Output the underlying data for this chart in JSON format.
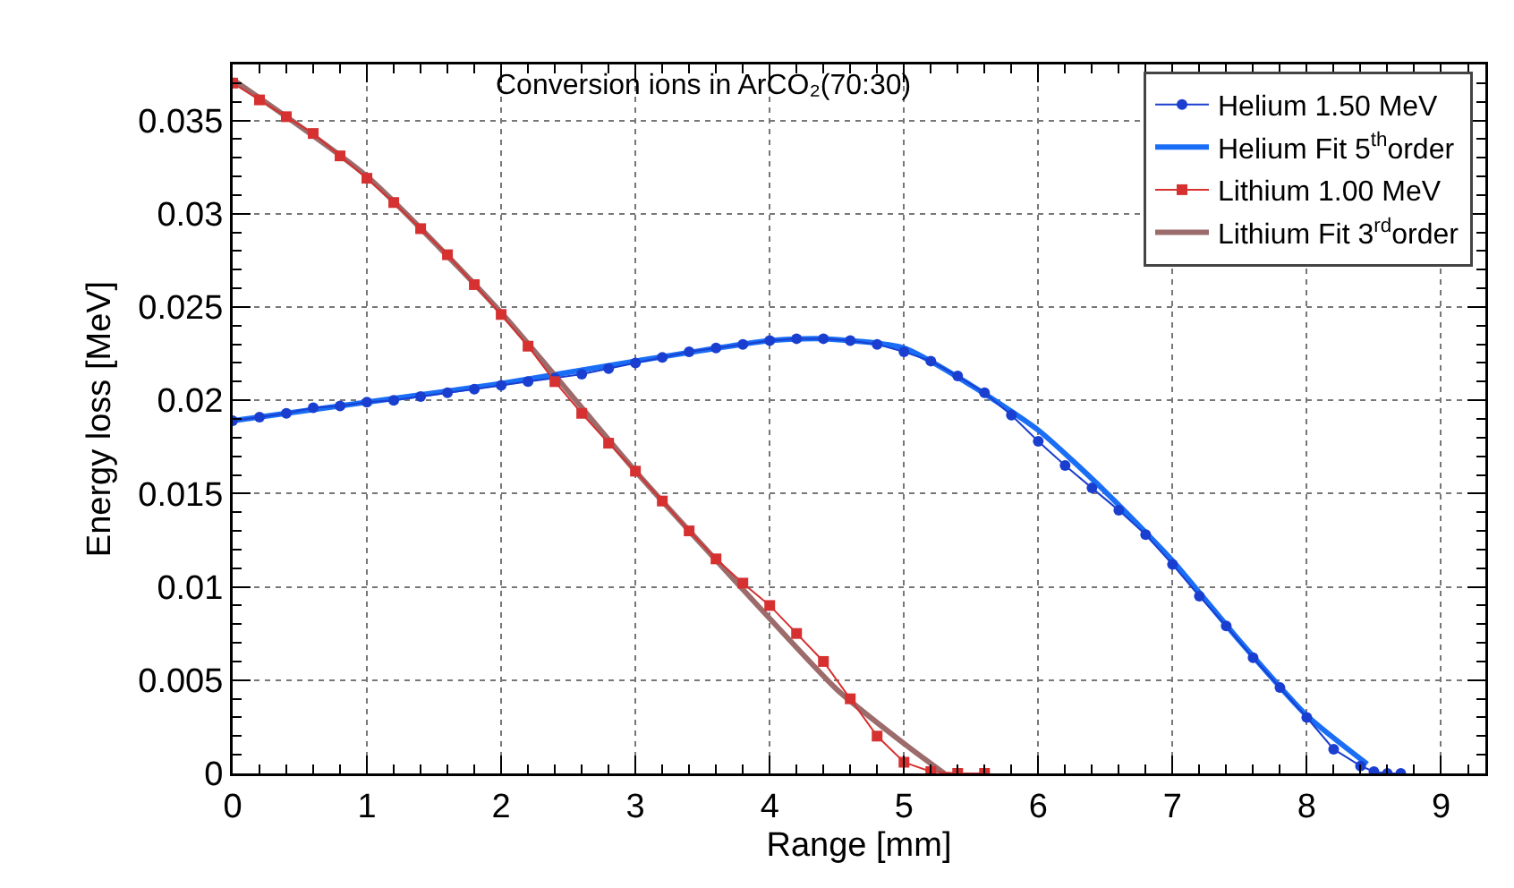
{
  "chart_data": {
    "type": "line",
    "title": "Conversion ions in ArCO₂(70:30)",
    "xlabel": "Range [mm]",
    "ylabel": "Energy loss [MeV]",
    "xlim": [
      0,
      9.33
    ],
    "ylim": [
      0,
      0.038
    ],
    "xticks": [
      0,
      1,
      2,
      3,
      4,
      5,
      6,
      7,
      8,
      9
    ],
    "yticks": [
      0,
      0.005,
      0.01,
      0.015,
      0.02,
      0.025,
      0.03,
      0.035
    ],
    "grid": true,
    "legend": "top right",
    "series": [
      {
        "name": "Helium 1.50 MeV",
        "marker": "circle",
        "color": "#1a3fd0",
        "x": [
          0,
          0.2,
          0.4,
          0.6,
          0.8,
          1.0,
          1.2,
          1.4,
          1.6,
          1.8,
          2.0,
          2.2,
          2.4,
          2.6,
          2.8,
          3.0,
          3.2,
          3.4,
          3.6,
          3.8,
          4.0,
          4.2,
          4.4,
          4.6,
          4.8,
          5.0,
          5.2,
          5.4,
          5.6,
          5.8,
          6.0,
          6.2,
          6.4,
          6.6,
          6.8,
          7.0,
          7.2,
          7.4,
          7.6,
          7.8,
          8.0,
          8.2,
          8.4,
          8.5,
          8.6,
          8.7
        ],
        "values": [
          0.0189,
          0.0191,
          0.0193,
          0.0196,
          0.0197,
          0.0199,
          0.02,
          0.0202,
          0.0204,
          0.0206,
          0.0208,
          0.021,
          0.0212,
          0.0214,
          0.0217,
          0.022,
          0.0223,
          0.0226,
          0.0228,
          0.023,
          0.0232,
          0.0233,
          0.0233,
          0.0232,
          0.023,
          0.0226,
          0.0221,
          0.0213,
          0.0204,
          0.0192,
          0.0178,
          0.0165,
          0.0153,
          0.0141,
          0.0128,
          0.0112,
          0.0095,
          0.0079,
          0.0062,
          0.0046,
          0.003,
          0.0013,
          0.0004,
          0.0001,
          0,
          0
        ]
      },
      {
        "name": "Helium Fit 5$^{th}$order",
        "marker": "none",
        "color": "#1a6ef5",
        "x": [
          0,
          1,
          2,
          3,
          4,
          4.4,
          5,
          5.5,
          6,
          6.5,
          7,
          7.5,
          8,
          8.45
        ],
        "values": [
          0.0189,
          0.0199,
          0.0209,
          0.0221,
          0.0232,
          0.0233,
          0.0228,
          0.0208,
          0.0184,
          0.0151,
          0.0114,
          0.0071,
          0.0031,
          0.0005
        ]
      },
      {
        "name": "Lithium 1.00 MeV",
        "marker": "square",
        "color": "#d63030",
        "x": [
          0,
          0.2,
          0.4,
          0.6,
          0.8,
          1.0,
          1.2,
          1.4,
          1.6,
          1.8,
          2.0,
          2.2,
          2.4,
          2.6,
          2.8,
          3.0,
          3.2,
          3.4,
          3.6,
          3.8,
          4.0,
          4.2,
          4.4,
          4.6,
          4.8,
          5.0,
          5.2,
          5.4,
          5.6
        ],
        "values": [
          0.037,
          0.0361,
          0.0352,
          0.0343,
          0.0331,
          0.0319,
          0.0306,
          0.0292,
          0.0278,
          0.0262,
          0.0246,
          0.0229,
          0.021,
          0.0193,
          0.0177,
          0.0162,
          0.0146,
          0.013,
          0.0115,
          0.0102,
          0.009,
          0.0075,
          0.006,
          0.004,
          0.002,
          0.0006,
          0.0001,
          0,
          0
        ]
      },
      {
        "name": "Lithium Fit 3$^{rd}$order",
        "marker": "none",
        "color": "#9c6b6b",
        "x": [
          0,
          1,
          2,
          3,
          4,
          4.5,
          5,
          5.3
        ],
        "values": [
          0.0372,
          0.032,
          0.0247,
          0.0162,
          0.0083,
          0.0045,
          0.0016,
          0
        ]
      }
    ]
  }
}
